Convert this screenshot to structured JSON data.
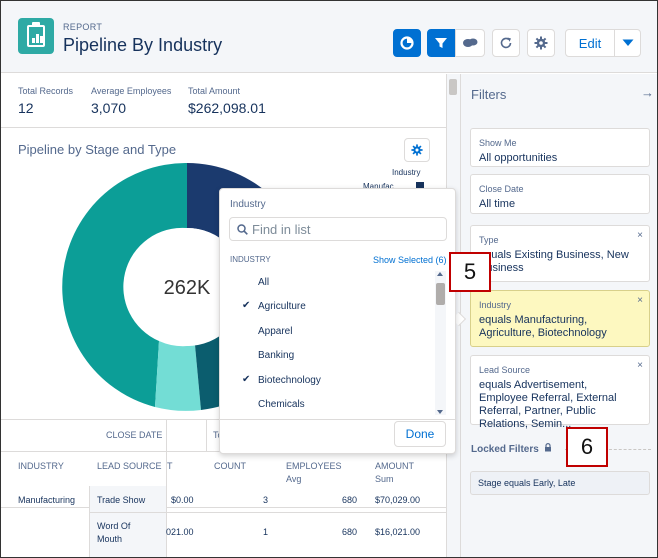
{
  "header": {
    "kicker": "REPORT",
    "title": "Pipeline By Industry",
    "edit_label": "Edit",
    "icons": [
      "report-icon",
      "chart-toggle-icon",
      "filter-icon",
      "chat-icon",
      "refresh-icon",
      "gear-icon",
      "chevron-down-icon"
    ],
    "accent_color": "#0070d2"
  },
  "summary": [
    {
      "label": "Total Records",
      "value": "12"
    },
    {
      "label": "Average Employees",
      "value": "3,070"
    },
    {
      "label": "Total Amount",
      "value": "$262,098.01"
    }
  ],
  "chart": {
    "title": "Pipeline by Stage and Type",
    "legend_title": "Industry",
    "legend_entry": "Manufac...",
    "center_label": "262K"
  },
  "chart_data": {
    "type": "pie",
    "center_label": "262K",
    "legend_title": "Industry",
    "categories": [
      "Manufac..."
    ],
    "colors": [
      "#16325c",
      "#2eaaa5",
      "#6fdbd3",
      "#0b5d6e"
    ]
  },
  "table": {
    "group_header": "CLOSE DATE",
    "group_header_partial": "To",
    "columns": [
      {
        "label": "INDUSTRY",
        "sub": ""
      },
      {
        "label": "LEAD SOURCE",
        "sub": ""
      },
      {
        "label": "T",
        "sub": ""
      },
      {
        "label": "COUNT",
        "sub": ""
      },
      {
        "label": "EMPLOYEES",
        "sub": "Avg"
      },
      {
        "label": "AMOUNT",
        "sub": "Sum"
      }
    ],
    "rows": [
      {
        "industry": "Manufacturing",
        "lead_source": "Trade Show",
        "partial": "$0.00",
        "count": "3",
        "employees": "680",
        "amount": "$70,029.00"
      },
      {
        "industry": "",
        "lead_source": "Word Of Mouth",
        "partial": "021.00",
        "count": "1",
        "employees": "680",
        "amount": "$16,021.00"
      }
    ]
  },
  "dropdown": {
    "title": "Industry",
    "search_placeholder": "Find in list",
    "column_label": "INDUSTRY",
    "show_selected": "Show Selected (6)",
    "items": [
      {
        "label": "All",
        "checked": false
      },
      {
        "label": "Agriculture",
        "checked": true
      },
      {
        "label": "Apparel",
        "checked": false
      },
      {
        "label": "Banking",
        "checked": false
      },
      {
        "label": "Biotechnology",
        "checked": true
      },
      {
        "label": "Chemicals",
        "checked": false
      }
    ],
    "check_glyph": "✔",
    "done_label": "Done"
  },
  "filters": {
    "title": "Filters",
    "collapse_glyph": "→",
    "close_glyph": "×",
    "cards": [
      {
        "label": "Show Me",
        "value": "All opportunities",
        "removable": false,
        "active": false
      },
      {
        "label": "Close Date",
        "value": "All time",
        "removable": false,
        "active": false
      },
      {
        "label": "Type",
        "value": "equals Existing Business, New Business",
        "removable": true,
        "active": false
      },
      {
        "label": "Industry",
        "value": "equals Manufacturing, Agriculture, Biotechnology",
        "removable": true,
        "active": true
      },
      {
        "label": "Lead Source",
        "value": "equals Advertisement, Employee Referral, External Referral, Partner, Public Relations, Semin...",
        "removable": true,
        "active": false
      }
    ],
    "locked_title": "Locked Filters",
    "locked_value": "Stage equals Early, Late"
  },
  "callouts": [
    "5",
    "6"
  ]
}
